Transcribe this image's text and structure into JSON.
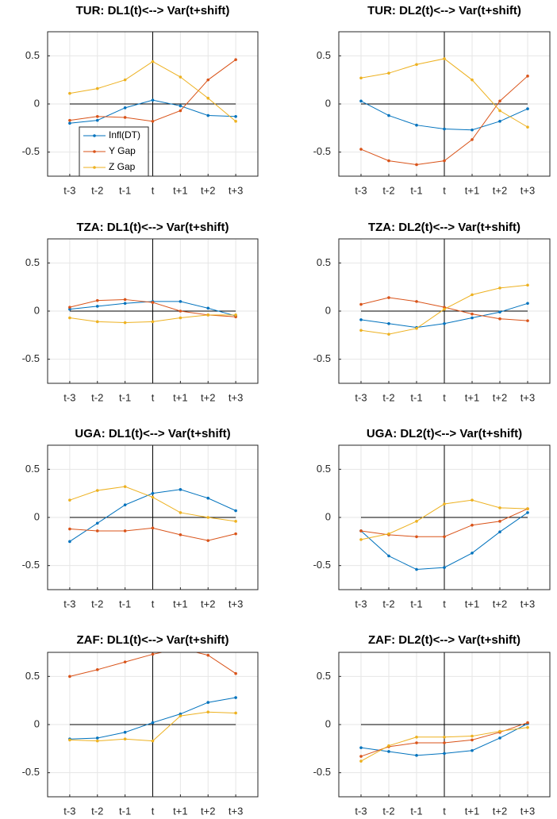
{
  "chart_data": [
    {
      "type": "line",
      "title": "TUR: DL1(t)<--> Var(t+shift)",
      "categories": [
        "t-3",
        "t-2",
        "t-1",
        "t",
        "t+1",
        "t+2",
        "t+3"
      ],
      "series": [
        {
          "name": "Infl(DT)",
          "color": "#0072BD",
          "values": [
            -0.2,
            -0.17,
            -0.04,
            0.04,
            -0.02,
            -0.12,
            -0.13
          ]
        },
        {
          "name": "Y Gap",
          "color": "#D95319",
          "values": [
            -0.17,
            -0.13,
            -0.14,
            -0.18,
            -0.07,
            0.25,
            0.46
          ]
        },
        {
          "name": "Z Gap",
          "color": "#EDB120",
          "values": [
            0.11,
            0.16,
            0.25,
            0.44,
            0.28,
            0.06,
            -0.18
          ]
        }
      ],
      "ylim": [
        -0.75,
        0.75
      ],
      "yticks": [
        -0.5,
        0,
        0.5
      ],
      "grid": true,
      "legend": "south west"
    },
    {
      "type": "line",
      "title": "TUR: DL2(t)<--> Var(t+shift)",
      "categories": [
        "t-3",
        "t-2",
        "t-1",
        "t",
        "t+1",
        "t+2",
        "t+3"
      ],
      "series": [
        {
          "color": "#0072BD",
          "values": [
            0.03,
            -0.12,
            -0.22,
            -0.26,
            -0.27,
            -0.18,
            -0.05
          ]
        },
        {
          "color": "#D95319",
          "values": [
            -0.47,
            -0.59,
            -0.63,
            -0.59,
            -0.37,
            0.03,
            0.29
          ]
        },
        {
          "color": "#EDB120",
          "values": [
            0.27,
            0.32,
            0.41,
            0.47,
            0.25,
            -0.07,
            -0.24
          ]
        }
      ],
      "ylim": [
        -0.75,
        0.75
      ],
      "yticks": [
        -0.5,
        0,
        0.5
      ],
      "grid": true
    },
    {
      "type": "line",
      "title": "TZA: DL1(t)<--> Var(t+shift)",
      "categories": [
        "t-3",
        "t-2",
        "t-1",
        "t",
        "t+1",
        "t+2",
        "t+3"
      ],
      "series": [
        {
          "color": "#0072BD",
          "values": [
            0.02,
            0.05,
            0.08,
            0.1,
            0.1,
            0.03,
            -0.05
          ]
        },
        {
          "color": "#D95319",
          "values": [
            0.04,
            0.11,
            0.12,
            0.09,
            0.0,
            -0.04,
            -0.06
          ]
        },
        {
          "color": "#EDB120",
          "values": [
            -0.07,
            -0.11,
            -0.12,
            -0.11,
            -0.07,
            -0.04,
            -0.04
          ]
        }
      ],
      "ylim": [
        -0.75,
        0.75
      ],
      "yticks": [
        -0.5,
        0,
        0.5
      ],
      "grid": true
    },
    {
      "type": "line",
      "title": "TZA: DL2(t)<--> Var(t+shift)",
      "categories": [
        "t-3",
        "t-2",
        "t-1",
        "t",
        "t+1",
        "t+2",
        "t+3"
      ],
      "series": [
        {
          "color": "#0072BD",
          "values": [
            -0.09,
            -0.13,
            -0.17,
            -0.13,
            -0.07,
            -0.01,
            0.08
          ]
        },
        {
          "color": "#D95319",
          "values": [
            0.07,
            0.14,
            0.1,
            0.04,
            -0.03,
            -0.08,
            -0.1
          ]
        },
        {
          "color": "#EDB120",
          "values": [
            -0.2,
            -0.24,
            -0.18,
            0.02,
            0.17,
            0.24,
            0.27
          ]
        }
      ],
      "ylim": [
        -0.75,
        0.75
      ],
      "yticks": [
        -0.5,
        0,
        0.5
      ],
      "grid": true
    },
    {
      "type": "line",
      "title": "UGA: DL1(t)<--> Var(t+shift)",
      "categories": [
        "t-3",
        "t-2",
        "t-1",
        "t",
        "t+1",
        "t+2",
        "t+3"
      ],
      "series": [
        {
          "color": "#0072BD",
          "values": [
            -0.25,
            -0.06,
            0.13,
            0.25,
            0.29,
            0.2,
            0.07
          ]
        },
        {
          "color": "#D95319",
          "values": [
            -0.12,
            -0.14,
            -0.14,
            -0.11,
            -0.18,
            -0.24,
            -0.17
          ]
        },
        {
          "color": "#EDB120",
          "values": [
            0.18,
            0.28,
            0.32,
            0.21,
            0.05,
            0.0,
            -0.04
          ]
        }
      ],
      "ylim": [
        -0.75,
        0.75
      ],
      "yticks": [
        -0.5,
        0,
        0.5
      ],
      "grid": true
    },
    {
      "type": "line",
      "title": "UGA: DL2(t)<--> Var(t+shift)",
      "categories": [
        "t-3",
        "t-2",
        "t-1",
        "t",
        "t+1",
        "t+2",
        "t+3"
      ],
      "series": [
        {
          "color": "#0072BD",
          "values": [
            -0.14,
            -0.4,
            -0.54,
            -0.52,
            -0.37,
            -0.15,
            0.05
          ]
        },
        {
          "color": "#D95319",
          "values": [
            -0.14,
            -0.18,
            -0.2,
            -0.2,
            -0.08,
            -0.04,
            0.09
          ]
        },
        {
          "color": "#EDB120",
          "values": [
            -0.23,
            -0.17,
            -0.04,
            0.14,
            0.18,
            0.1,
            0.09
          ]
        }
      ],
      "ylim": [
        -0.75,
        0.75
      ],
      "yticks": [
        -0.5,
        0,
        0.5
      ],
      "grid": true
    },
    {
      "type": "line",
      "title": "ZAF: DL1(t)<--> Var(t+shift)",
      "categories": [
        "t-3",
        "t-2",
        "t-1",
        "t",
        "t+1",
        "t+2",
        "t+3"
      ],
      "series": [
        {
          "color": "#0072BD",
          "values": [
            -0.15,
            -0.14,
            -0.08,
            0.02,
            0.11,
            0.23,
            0.28
          ]
        },
        {
          "color": "#D95319",
          "values": [
            0.5,
            0.57,
            0.65,
            0.73,
            0.79,
            0.72,
            0.53
          ]
        },
        {
          "color": "#EDB120",
          "values": [
            -0.16,
            -0.17,
            -0.15,
            -0.17,
            0.09,
            0.13,
            0.12
          ]
        }
      ],
      "ylim": [
        -0.75,
        0.75
      ],
      "yticks": [
        -0.5,
        0,
        0.5
      ],
      "grid": true
    },
    {
      "type": "line",
      "title": "ZAF: DL2(t)<--> Var(t+shift)",
      "categories": [
        "t-3",
        "t-2",
        "t-1",
        "t",
        "t+1",
        "t+2",
        "t+3"
      ],
      "series": [
        {
          "color": "#0072BD",
          "values": [
            -0.24,
            -0.28,
            -0.32,
            -0.3,
            -0.27,
            -0.14,
            0.01
          ]
        },
        {
          "color": "#D95319",
          "values": [
            -0.33,
            -0.23,
            -0.19,
            -0.19,
            -0.16,
            -0.08,
            0.02
          ]
        },
        {
          "color": "#EDB120",
          "values": [
            -0.38,
            -0.22,
            -0.13,
            -0.13,
            -0.12,
            -0.07,
            -0.03
          ]
        }
      ],
      "ylim": [
        -0.75,
        0.75
      ],
      "yticks": [
        -0.5,
        0,
        0.5
      ],
      "grid": true
    }
  ]
}
